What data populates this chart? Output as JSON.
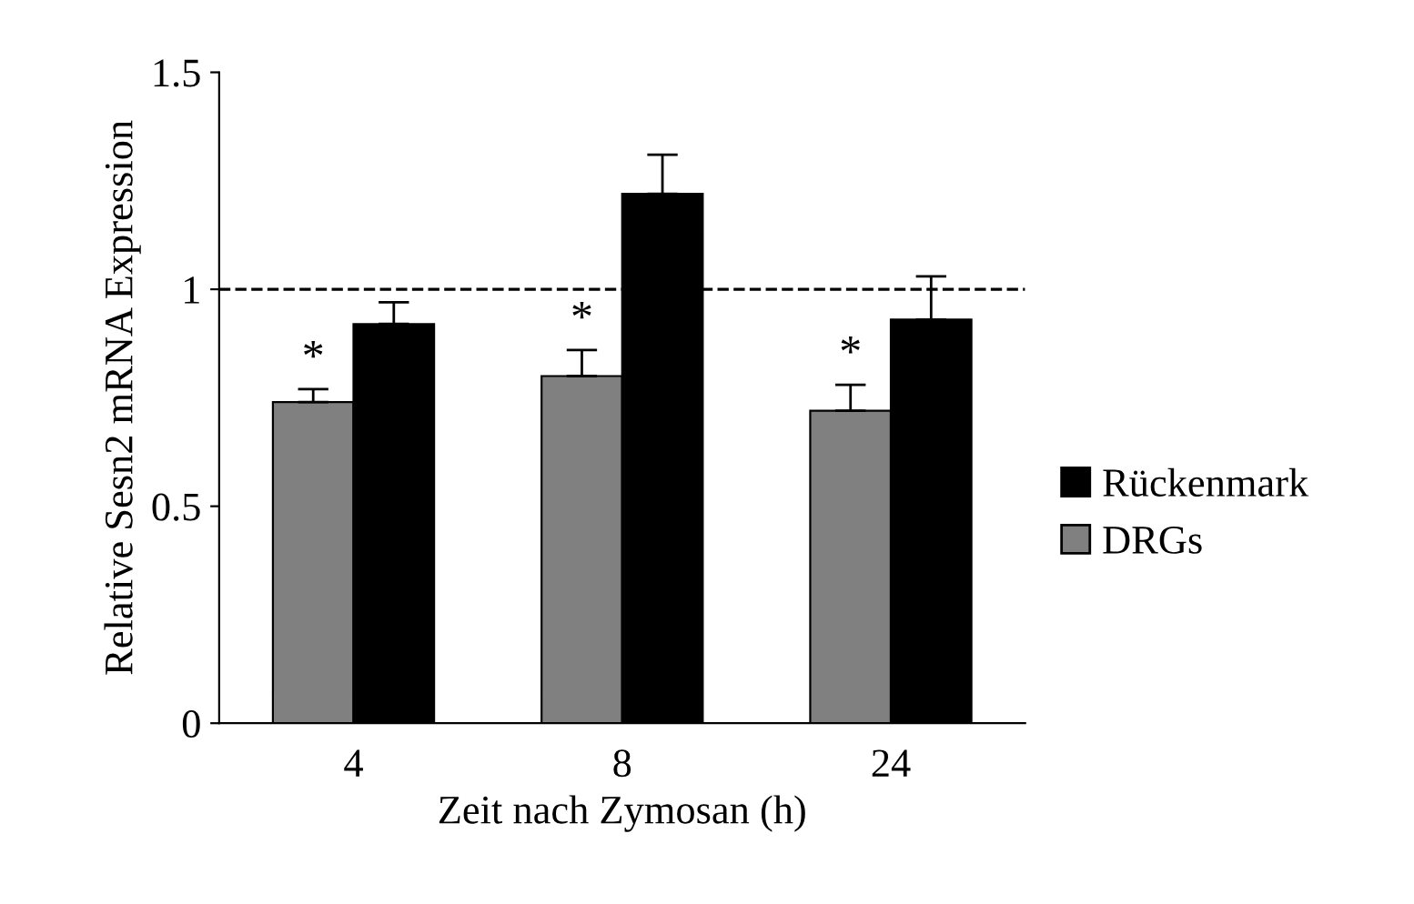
{
  "chart_data": {
    "type": "bar",
    "xlabel": "Zeit nach Zymosan (h)",
    "ylabel": "Relative Sesn2 mRNA Expression",
    "categories": [
      "4",
      "8",
      "24"
    ],
    "series": [
      {
        "name": "DRGs",
        "color": "#808080",
        "values": [
          0.74,
          0.8,
          0.72
        ],
        "errors": [
          [
            0.74,
            0.77
          ],
          [
            0.8,
            0.86
          ],
          [
            0.72,
            0.78
          ]
        ]
      },
      {
        "name": "Rückenmark",
        "color": "#000000",
        "values": [
          0.92,
          1.22,
          0.93
        ],
        "errors": [
          [
            0.92,
            0.97
          ],
          [
            1.22,
            1.31
          ],
          [
            0.93,
            1.03
          ]
        ]
      }
    ],
    "ylim": [
      0,
      1.5
    ],
    "yticks": [
      0,
      0.5,
      1,
      1.5
    ],
    "grid": false,
    "legend": "right",
    "ref_lines": [
      {
        "axis": "y",
        "value": 1,
        "line_style": "dashed",
        "color": "#000000"
      }
    ],
    "annotations": [
      {
        "text": "*",
        "x": "4",
        "y": 0.79
      },
      {
        "text": "*",
        "x": "8",
        "y": 0.88
      },
      {
        "text": "*",
        "x": "24",
        "y": 0.8
      }
    ]
  }
}
